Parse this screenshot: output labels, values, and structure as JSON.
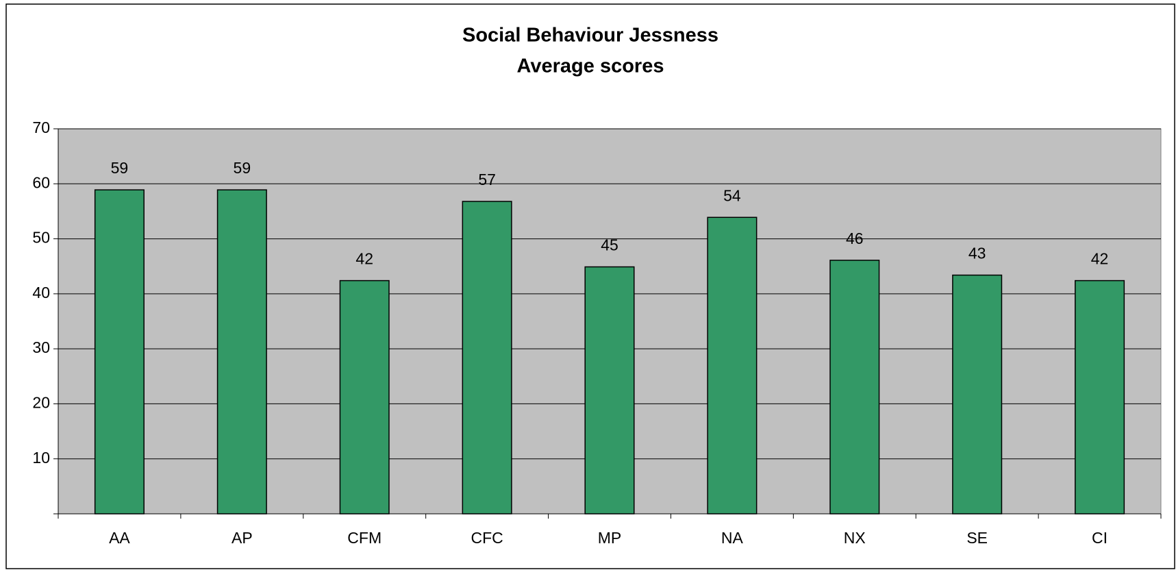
{
  "chart_data": {
    "type": "bar",
    "title": "Social Behaviour Jessness",
    "subtitle": "Average scores",
    "categories": [
      "AA",
      "AP",
      "CFM",
      "CFC",
      "MP",
      "NA",
      "NX",
      "SE",
      "CI"
    ],
    "values": [
      58.9,
      58.9,
      42.4,
      56.8,
      44.9,
      53.9,
      46.1,
      43.4,
      42.4
    ],
    "value_labels": [
      "59",
      "59",
      "42",
      "57",
      "45",
      "54",
      "46",
      "43",
      "42"
    ],
    "color": "#339966",
    "ylim": [
      0,
      70
    ],
    "yticks": [
      10,
      20,
      30,
      40,
      50,
      60,
      70
    ],
    "grid": true
  }
}
